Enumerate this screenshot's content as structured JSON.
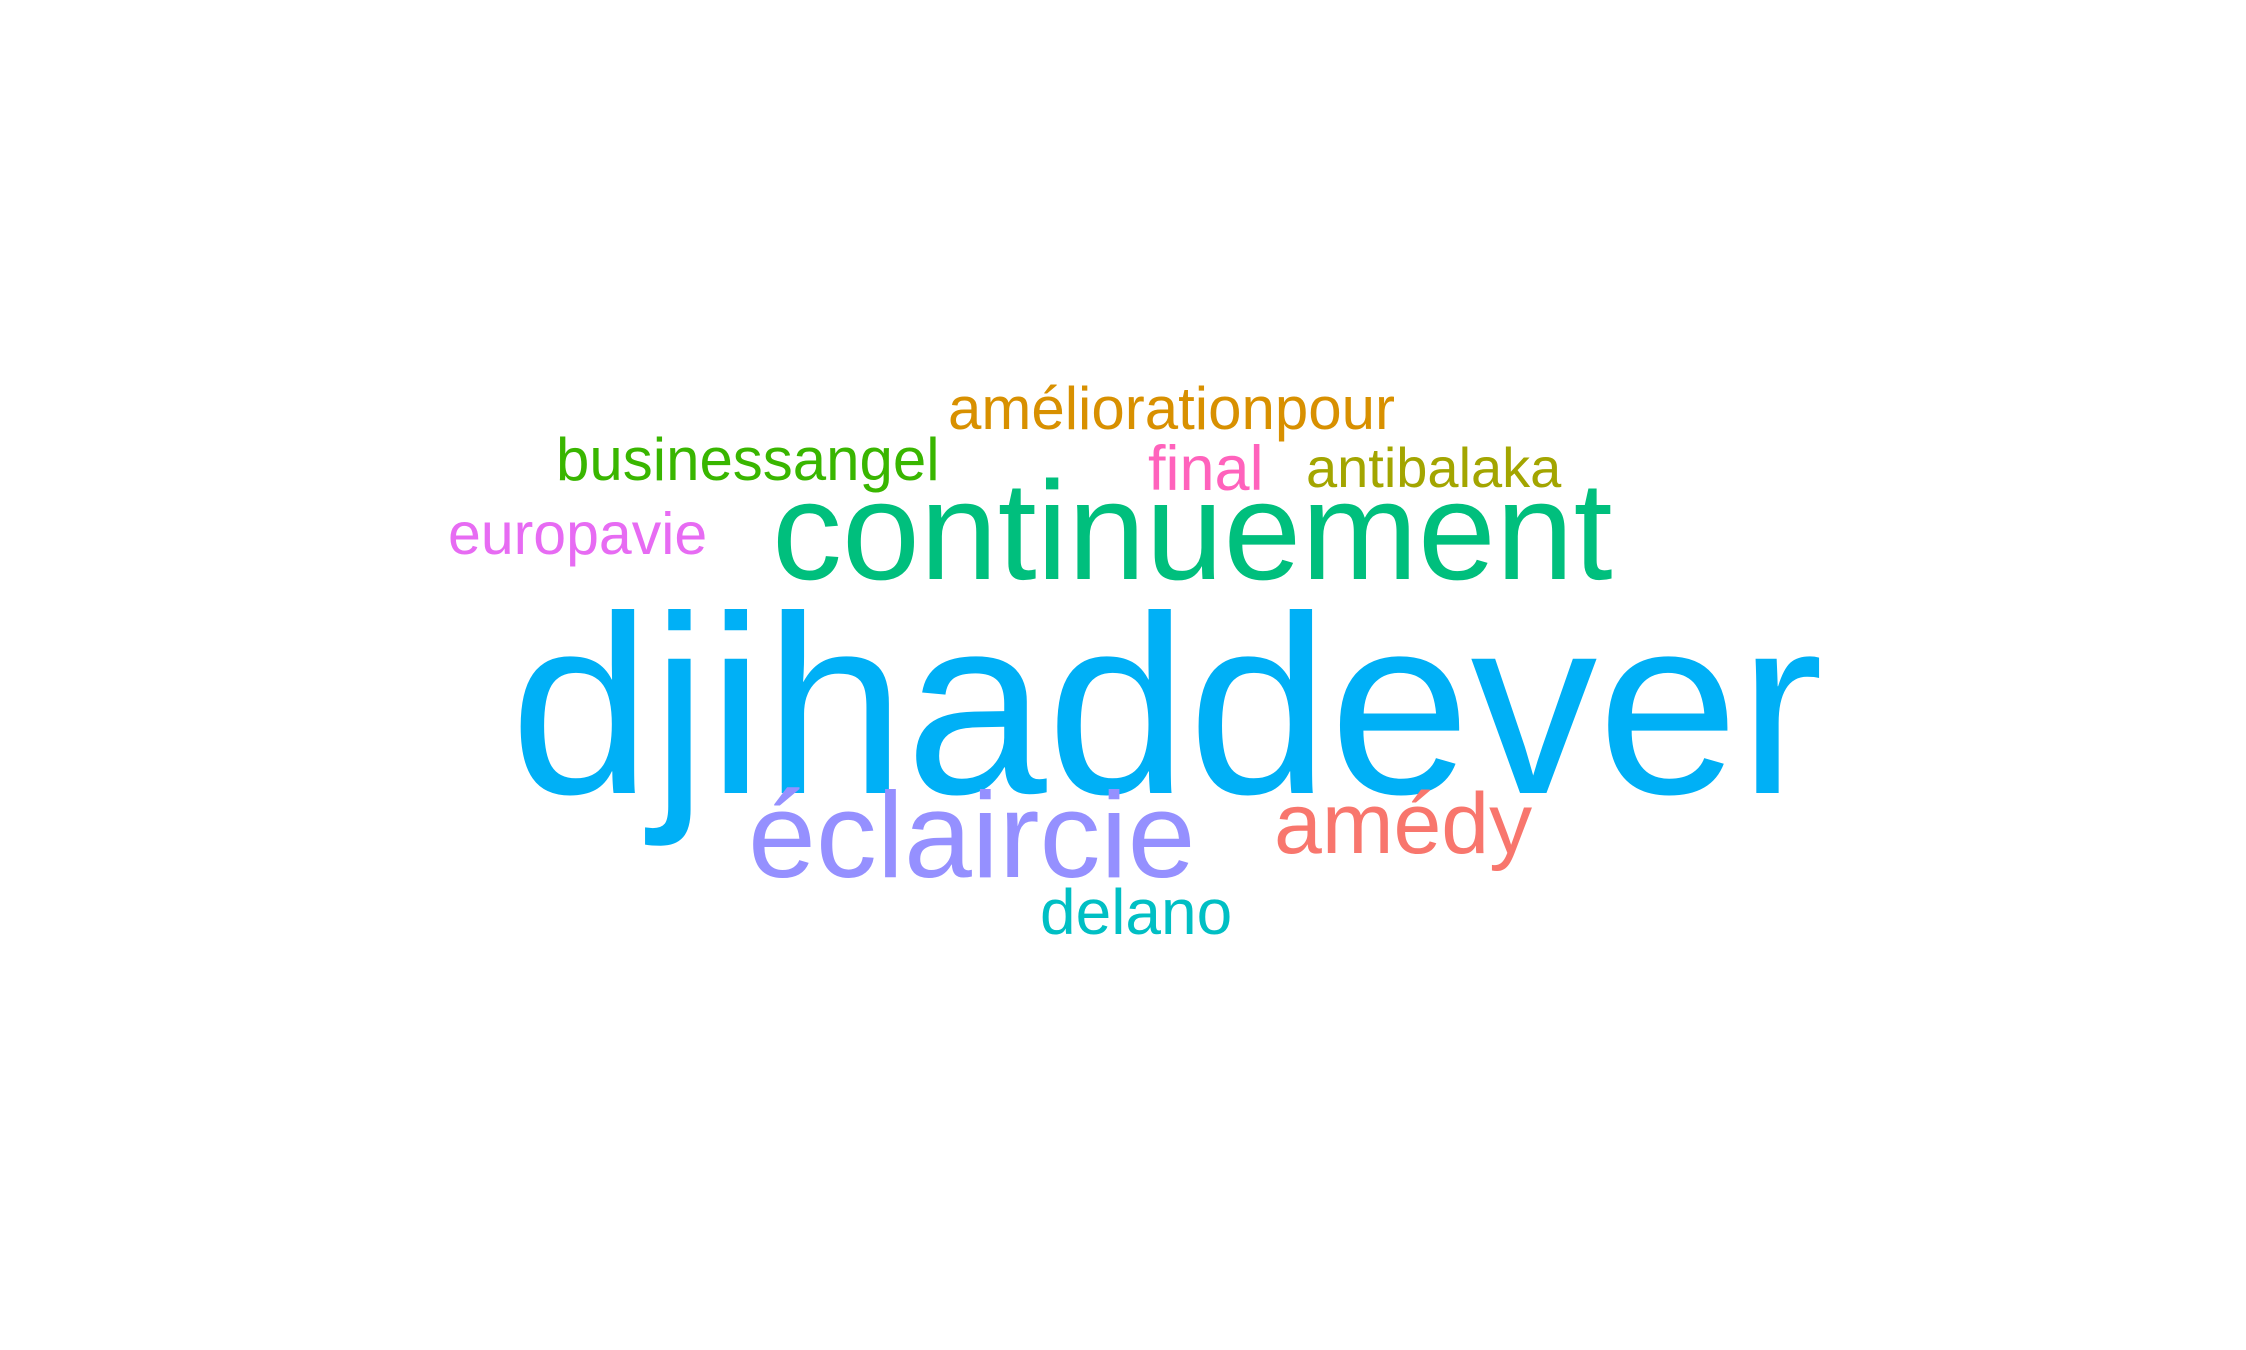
{
  "words": [
    {
      "text": "djihaddever",
      "color": "#00B0F6"
    },
    {
      "text": "continuement",
      "color": "#00BF7D"
    },
    {
      "text": "éclaircie",
      "color": "#9590FF"
    },
    {
      "text": "amédy",
      "color": "#F8766D"
    },
    {
      "text": "améliorationpour",
      "color": "#D89000"
    },
    {
      "text": "businessangel",
      "color": "#39B600"
    },
    {
      "text": "final",
      "color": "#FF62BC"
    },
    {
      "text": "antibalaka",
      "color": "#A3A500"
    },
    {
      "text": "europavie",
      "color": "#E76BF3"
    },
    {
      "text": "delano",
      "color": "#00BFC4"
    }
  ]
}
